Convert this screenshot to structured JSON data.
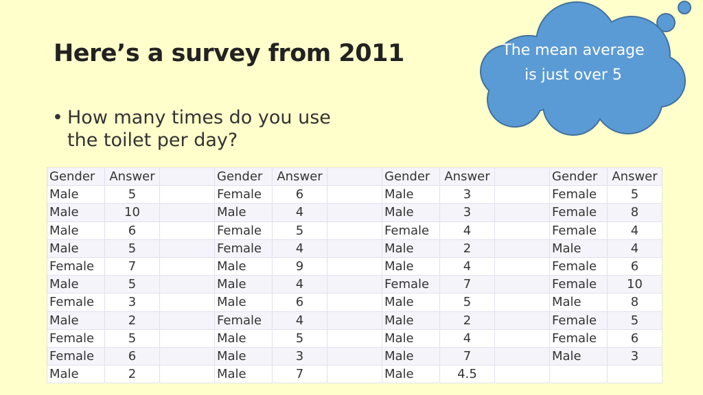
{
  "title": "Here’s a survey from 2011",
  "bullet": "How many times do you use the toilet per day?",
  "callout": "The mean average is just over 5",
  "colors": {
    "background": "#ffffcc",
    "cloud_fill": "#5b9bd5",
    "cloud_stroke": "#41719c"
  },
  "table": {
    "headers": [
      "Gender",
      "Answer"
    ],
    "groups": [
      {
        "rows": [
          [
            "Male",
            "5"
          ],
          [
            "Male",
            "10"
          ],
          [
            "Male",
            "6"
          ],
          [
            "Male",
            "5"
          ],
          [
            "Female",
            "7"
          ],
          [
            "Male",
            "5"
          ],
          [
            "Female",
            "3"
          ],
          [
            "Male",
            "2"
          ],
          [
            "Female",
            "5"
          ],
          [
            "Female",
            "6"
          ],
          [
            "Male",
            "2"
          ]
        ]
      },
      {
        "rows": [
          [
            "Female",
            "6"
          ],
          [
            "Male",
            "4"
          ],
          [
            "Female",
            "5"
          ],
          [
            "Female",
            "4"
          ],
          [
            "Male",
            "9"
          ],
          [
            "Male",
            "4"
          ],
          [
            "Male",
            "6"
          ],
          [
            "Female",
            "4"
          ],
          [
            "Male",
            "5"
          ],
          [
            "Male",
            "3"
          ],
          [
            "Male",
            "7"
          ]
        ]
      },
      {
        "rows": [
          [
            "Male",
            "3"
          ],
          [
            "Male",
            "3"
          ],
          [
            "Female",
            "4"
          ],
          [
            "Male",
            "2"
          ],
          [
            "Male",
            "4"
          ],
          [
            "Female",
            "7"
          ],
          [
            "Male",
            "5"
          ],
          [
            "Male",
            "2"
          ],
          [
            "Male",
            "4"
          ],
          [
            "Male",
            "7"
          ],
          [
            "Male",
            "4.5"
          ]
        ]
      },
      {
        "rows": [
          [
            "Female",
            "5"
          ],
          [
            "Female",
            "8"
          ],
          [
            "Female",
            "4"
          ],
          [
            "Male",
            "4"
          ],
          [
            "Female",
            "6"
          ],
          [
            "Female",
            "10"
          ],
          [
            "Male",
            "8"
          ],
          [
            "Female",
            "5"
          ],
          [
            "Female",
            "6"
          ],
          [
            "Male",
            "3"
          ],
          [
            "",
            ""
          ]
        ]
      }
    ]
  }
}
